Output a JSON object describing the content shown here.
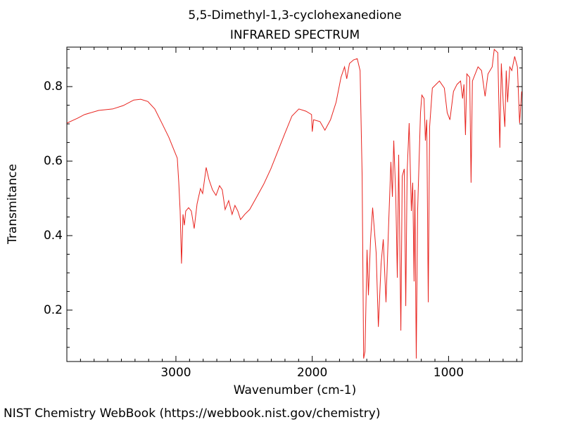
{
  "chart_data": {
    "type": "line",
    "title": "5,5-Dimethyl-1,3-cyclohexanedione",
    "subtitle": "INFRARED SPECTRUM",
    "x_label": "Wavenumber (cm-1)",
    "y_label": "Transmitance",
    "color": "#e8231e",
    "xlim": [
      3800,
      460
    ],
    "ylim": [
      0.062,
      0.906
    ],
    "xticks": [
      3000,
      2000,
      1000
    ],
    "yticks": [
      0.2,
      0.4,
      0.6,
      0.8
    ],
    "xminorticks": [
      3700,
      3600,
      3500,
      3400,
      3300,
      3200,
      3100,
      2900,
      2800,
      2700,
      2600,
      2500,
      2400,
      2300,
      2200,
      2100,
      1900,
      1800,
      1700,
      1600,
      1500,
      1400,
      1300,
      1200,
      1100,
      900,
      800,
      700,
      600,
      500
    ],
    "yminorticks": [
      0.1,
      0.15,
      0.25,
      0.3,
      0.35,
      0.45,
      0.5,
      0.55,
      0.65,
      0.7,
      0.75,
      0.85,
      0.9
    ],
    "x": [
      3800,
      3723,
      3670,
      3567,
      3464,
      3387,
      3309,
      3258,
      3206,
      3155,
      3103,
      3052,
      3010,
      2990,
      2979,
      2969,
      2959,
      2948,
      2938,
      2928,
      2907,
      2887,
      2866,
      2845,
      2820,
      2804,
      2778,
      2758,
      2732,
      2706,
      2680,
      2660,
      2639,
      2613,
      2588,
      2567,
      2546,
      2526,
      2495,
      2459,
      2407,
      2356,
      2304,
      2253,
      2201,
      2149,
      2098,
      2046,
      2005,
      2000,
      1990,
      1943,
      1907,
      1866,
      1825,
      1789,
      1763,
      1747,
      1727,
      1696,
      1670,
      1649,
      1634,
      1623,
      1613,
      1598,
      1588,
      1572,
      1557,
      1531,
      1515,
      1495,
      1479,
      1459,
      1438,
      1423,
      1412,
      1402,
      1387,
      1376,
      1366,
      1350,
      1340,
      1325,
      1314,
      1304,
      1289,
      1273,
      1263,
      1253,
      1247,
      1237,
      1227,
      1206,
      1196,
      1180,
      1170,
      1160,
      1149,
      1139,
      1119,
      1067,
      1031,
      1010,
      990,
      964,
      938,
      912,
      897,
      887,
      876,
      866,
      845,
      835,
      825,
      784,
      758,
      732,
      711,
      680,
      665,
      639,
      624,
      613,
      598,
      587,
      577,
      567,
      551,
      536,
      515,
      495,
      479,
      464
    ],
    "values": [
      0.702,
      0.715,
      0.725,
      0.736,
      0.74,
      0.749,
      0.764,
      0.766,
      0.76,
      0.74,
      0.702,
      0.664,
      0.626,
      0.608,
      0.542,
      0.466,
      0.325,
      0.457,
      0.428,
      0.466,
      0.475,
      0.466,
      0.419,
      0.485,
      0.526,
      0.513,
      0.583,
      0.551,
      0.523,
      0.508,
      0.534,
      0.523,
      0.47,
      0.494,
      0.457,
      0.481,
      0.466,
      0.443,
      0.457,
      0.47,
      0.504,
      0.538,
      0.579,
      0.626,
      0.674,
      0.721,
      0.74,
      0.734,
      0.725,
      0.679,
      0.711,
      0.706,
      0.683,
      0.711,
      0.758,
      0.825,
      0.853,
      0.821,
      0.862,
      0.872,
      0.875,
      0.843,
      0.56,
      0.07,
      0.089,
      0.362,
      0.24,
      0.39,
      0.475,
      0.353,
      0.155,
      0.324,
      0.39,
      0.221,
      0.447,
      0.598,
      0.504,
      0.655,
      0.504,
      0.287,
      0.617,
      0.145,
      0.56,
      0.579,
      0.211,
      0.57,
      0.702,
      0.466,
      0.542,
      0.277,
      0.523,
      0.07,
      0.466,
      0.73,
      0.777,
      0.768,
      0.655,
      0.711,
      0.221,
      0.692,
      0.796,
      0.815,
      0.796,
      0.73,
      0.711,
      0.787,
      0.806,
      0.815,
      0.768,
      0.806,
      0.67,
      0.834,
      0.825,
      0.542,
      0.815,
      0.853,
      0.843,
      0.774,
      0.834,
      0.853,
      0.9,
      0.891,
      0.636,
      0.862,
      0.749,
      0.692,
      0.843,
      0.758,
      0.853,
      0.843,
      0.881,
      0.853,
      0.702,
      0.787
    ]
  },
  "footer": "NIST Chemistry WebBook (https://webbook.nist.gov/chemistry)"
}
